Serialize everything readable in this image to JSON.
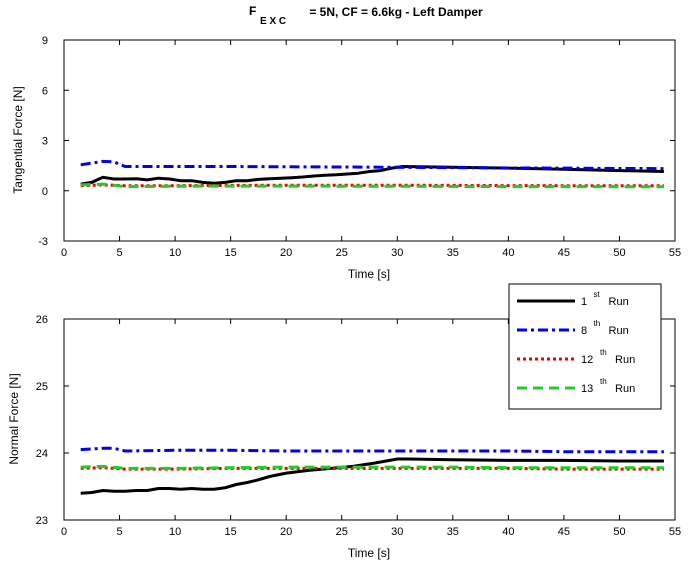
{
  "title": {
    "main": "F",
    "sub": "E X C",
    "rest": " = 5N, CF = 6.6kg - Left Damper"
  },
  "chart_data": [
    {
      "type": "line",
      "xlabel": "Time [s]",
      "ylabel": "Tangential Force [N]",
      "xlim": [
        0,
        55
      ],
      "ylim": [
        -3,
        9
      ],
      "xticks": [
        0,
        5,
        10,
        15,
        20,
        25,
        30,
        35,
        40,
        45,
        50,
        55
      ],
      "yticks": [
        -3,
        0,
        3,
        6,
        9
      ],
      "grid": false,
      "series": [
        {
          "color": "#000000",
          "dash": "solid",
          "width": 3,
          "x": [
            1.5,
            2.5,
            3.5,
            4.5,
            5.5,
            6.5,
            7.5,
            8.5,
            9.5,
            10.5,
            11.5,
            12.5,
            13.5,
            14.5,
            15.5,
            16.5,
            17.5,
            18.5,
            19.5,
            20.5,
            21.5,
            22.5,
            23.5,
            24.5,
            25.5,
            26.5,
            27.5,
            28.5,
            29.5,
            30.5,
            35,
            40,
            45,
            50,
            54
          ],
          "y": [
            0.4,
            0.5,
            0.8,
            0.7,
            0.7,
            0.72,
            0.65,
            0.75,
            0.7,
            0.6,
            0.6,
            0.5,
            0.45,
            0.5,
            0.6,
            0.6,
            0.68,
            0.72,
            0.75,
            0.78,
            0.82,
            0.88,
            0.92,
            0.95,
            1.0,
            1.05,
            1.15,
            1.2,
            1.35,
            1.45,
            1.4,
            1.35,
            1.28,
            1.2,
            1.15
          ]
        },
        {
          "color": "#0000ee",
          "dash": "dashdot",
          "width": 3,
          "x": [
            1.5,
            2.5,
            3.5,
            4.5,
            5.5,
            10,
            15,
            20,
            25,
            30,
            35,
            40,
            45,
            50,
            54
          ],
          "y": [
            1.55,
            1.65,
            1.75,
            1.72,
            1.45,
            1.45,
            1.45,
            1.43,
            1.42,
            1.4,
            1.38,
            1.36,
            1.35,
            1.33,
            1.32
          ]
        },
        {
          "color": "#ee0000",
          "dash": "dotted",
          "width": 3,
          "x": [
            1.5,
            3.5,
            5.5,
            10,
            15,
            20,
            25,
            30,
            35,
            40,
            45,
            50,
            54
          ],
          "y": [
            0.3,
            0.35,
            0.3,
            0.3,
            0.32,
            0.33,
            0.33,
            0.33,
            0.32,
            0.31,
            0.3,
            0.3,
            0.3
          ]
        },
        {
          "color": "#22cc22",
          "dash": "dashed",
          "width": 3,
          "x": [
            1.5,
            3.5,
            5.5,
            10,
            15,
            20,
            25,
            30,
            35,
            40,
            45,
            50,
            54
          ],
          "y": [
            0.35,
            0.4,
            0.25,
            0.27,
            0.28,
            0.28,
            0.27,
            0.27,
            0.26,
            0.25,
            0.25,
            0.24,
            0.24
          ]
        }
      ]
    },
    {
      "type": "line",
      "xlabel": "Time [s]",
      "ylabel": "Normal Force [N]",
      "xlim": [
        0,
        55
      ],
      "ylim": [
        23,
        26
      ],
      "xticks": [
        0,
        5,
        10,
        15,
        20,
        25,
        30,
        35,
        40,
        45,
        50,
        55
      ],
      "yticks": [
        23,
        24,
        25,
        26
      ],
      "grid": false,
      "legend_position": "top-right",
      "legend": [
        {
          "label": "1",
          "sup": "st",
          "suffix": " Run"
        },
        {
          "label": "8",
          "sup": "th",
          "suffix": " Run"
        },
        {
          "label": "12",
          "sup": "th",
          "suffix": " Run"
        },
        {
          "label": "13",
          "sup": "th",
          "suffix": " Run"
        }
      ],
      "series": [
        {
          "color": "#000000",
          "dash": "solid",
          "width": 3,
          "x": [
            1.5,
            2.5,
            3.5,
            4.5,
            5.5,
            6.5,
            7.5,
            8.5,
            9.5,
            10.5,
            11.5,
            12.5,
            13.5,
            14.5,
            15.5,
            16.5,
            17.5,
            18.5,
            20,
            22,
            24,
            26,
            28,
            29,
            30,
            31,
            35,
            40,
            45,
            50,
            54
          ],
          "y": [
            23.4,
            23.41,
            23.44,
            23.43,
            23.43,
            23.44,
            23.44,
            23.47,
            23.47,
            23.46,
            23.47,
            23.46,
            23.46,
            23.48,
            23.53,
            23.56,
            23.6,
            23.65,
            23.7,
            23.74,
            23.77,
            23.8,
            23.85,
            23.88,
            23.91,
            23.91,
            23.9,
            23.89,
            23.89,
            23.88,
            23.88
          ]
        },
        {
          "color": "#0000ee",
          "dash": "dashdot",
          "width": 3,
          "x": [
            1.5,
            3.5,
            4.5,
            5.5,
            10,
            15,
            20,
            25,
            30,
            35,
            40,
            45,
            50,
            54
          ],
          "y": [
            24.05,
            24.07,
            24.07,
            24.03,
            24.04,
            24.04,
            24.03,
            24.03,
            24.03,
            24.03,
            24.03,
            24.02,
            24.02,
            24.02
          ]
        },
        {
          "color": "#ee0000",
          "dash": "dotted",
          "width": 3,
          "x": [
            1.5,
            3.5,
            5.5,
            10,
            15,
            20,
            25,
            30,
            35,
            40,
            45,
            50,
            54
          ],
          "y": [
            23.77,
            23.78,
            23.76,
            23.76,
            23.77,
            23.77,
            23.77,
            23.77,
            23.77,
            23.77,
            23.76,
            23.76,
            23.76
          ]
        },
        {
          "color": "#22cc22",
          "dash": "dashed",
          "width": 3,
          "x": [
            1.5,
            3.5,
            5.5,
            10,
            15,
            20,
            25,
            30,
            35,
            40,
            45,
            50,
            54
          ],
          "y": [
            23.79,
            23.8,
            23.77,
            23.77,
            23.78,
            23.79,
            23.79,
            23.79,
            23.79,
            23.78,
            23.78,
            23.78,
            23.78
          ]
        }
      ]
    }
  ]
}
